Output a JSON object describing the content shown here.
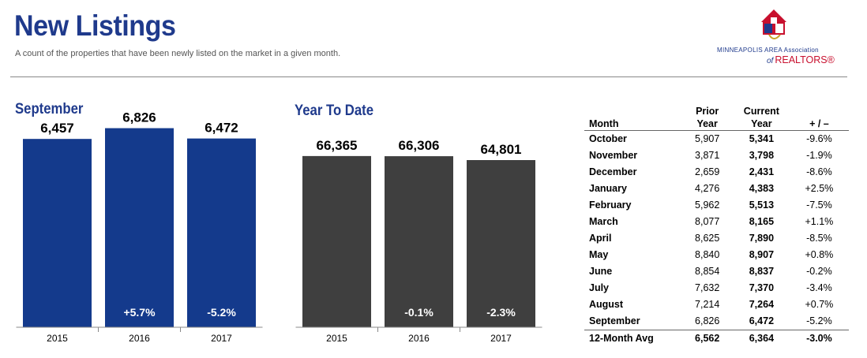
{
  "header": {
    "title": "New Listings",
    "subtitle": "A count of the properties that have been newly listed on the market in a given month."
  },
  "logo": {
    "line1": "MINNEAPOLIS AREA Association",
    "of": "of",
    "realtors": "REALTORS®",
    "icon": "house-logo-icon",
    "colors": {
      "red": "#c8102e",
      "blue": "#1f3a8c",
      "gold": "#c9a227"
    }
  },
  "colors": {
    "accent": "#1f3a8c",
    "sep_bar": "#143a8c",
    "ytd_bar": "#3f3f3f"
  },
  "chart_data": [
    {
      "type": "bar",
      "title": "September",
      "categories": [
        "2015",
        "2016",
        "2017"
      ],
      "values": [
        6457,
        6826,
        6472
      ],
      "value_labels": [
        "6,457",
        "6,826",
        "6,472"
      ],
      "change_labels": [
        "",
        "+5.7%",
        "-5.2%"
      ],
      "ylim": [
        0,
        7300
      ]
    },
    {
      "type": "bar",
      "title": "Year To Date",
      "categories": [
        "2015",
        "2016",
        "2017"
      ],
      "values": [
        66365,
        66306,
        64801
      ],
      "value_labels": [
        "66,365",
        "66,306",
        "64,801"
      ],
      "change_labels": [
        "",
        "-0.1%",
        "-2.3%"
      ],
      "ylim": [
        0,
        70000
      ]
    },
    {
      "type": "table",
      "columns": [
        "Month",
        "Prior Year",
        "Current Year",
        "+ / –"
      ],
      "header": {
        "month": "Month",
        "prior_1": "Prior",
        "prior_2": "Year",
        "current_1": "Current",
        "current_2": "Year",
        "change": "+ / –"
      },
      "rows": [
        [
          "October",
          "5,907",
          "5,341",
          "-9.6%"
        ],
        [
          "November",
          "3,871",
          "3,798",
          "-1.9%"
        ],
        [
          "December",
          "2,659",
          "2,431",
          "-8.6%"
        ],
        [
          "January",
          "4,276",
          "4,383",
          "+2.5%"
        ],
        [
          "February",
          "5,962",
          "5,513",
          "-7.5%"
        ],
        [
          "March",
          "8,077",
          "8,165",
          "+1.1%"
        ],
        [
          "April",
          "8,625",
          "7,890",
          "-8.5%"
        ],
        [
          "May",
          "8,840",
          "8,907",
          "+0.8%"
        ],
        [
          "June",
          "8,854",
          "8,837",
          "-0.2%"
        ],
        [
          "July",
          "7,632",
          "7,370",
          "-3.4%"
        ],
        [
          "August",
          "7,214",
          "7,264",
          "+0.7%"
        ],
        [
          "September",
          "6,826",
          "6,472",
          "-5.2%"
        ]
      ],
      "footer": [
        "12-Month Avg",
        "6,562",
        "6,364",
        "-3.0%"
      ]
    }
  ]
}
